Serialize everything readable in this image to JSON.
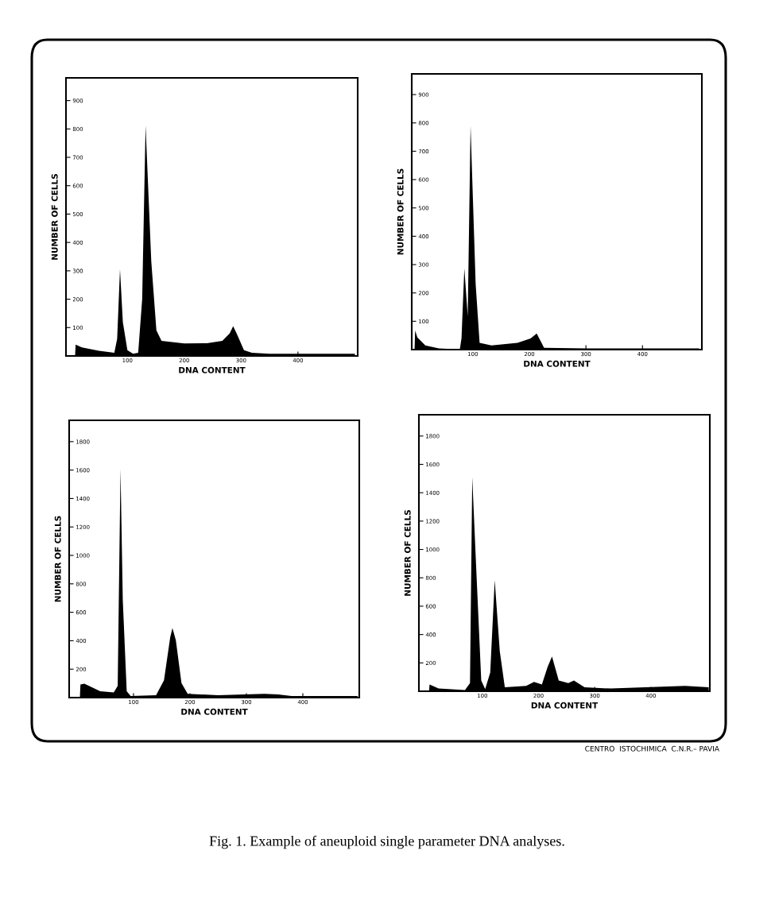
{
  "chart_data": [
    {
      "type": "area",
      "xlabel": "DNA CONTENT",
      "ylabel": "NUMBER OF CELLS",
      "xlim": [
        -8,
        505
      ],
      "ylim": [
        0,
        980
      ],
      "xticks": [
        100,
        200,
        300,
        400
      ],
      "yticks": [
        100,
        200,
        300,
        400,
        500,
        600,
        700,
        800,
        900
      ],
      "grid": false,
      "legend": false,
      "series": [
        {
          "color": "#000000",
          "x": [
            8,
            9,
            20,
            50,
            77,
            82,
            87,
            92,
            100,
            110,
            119,
            126,
            132,
            142,
            151,
            160,
            200,
            240,
            267,
            280,
            286,
            292,
            305,
            319,
            350,
            400,
            450,
            500
          ],
          "values": [
            0,
            40,
            30,
            18,
            11,
            60,
            305,
            120,
            20,
            8,
            11,
            200,
            812,
            333,
            90,
            53,
            44,
            45,
            53,
            80,
            105,
            80,
            20,
            11,
            8,
            8,
            8,
            8
          ]
        }
      ]
    },
    {
      "type": "area",
      "xlabel": "DNA CONTENT",
      "ylabel": "NUMBER OF CELLS",
      "xlim": [
        -8,
        505
      ],
      "ylim": [
        0,
        973
      ],
      "xticks": [
        100,
        200,
        300,
        400
      ],
      "yticks": [
        100,
        200,
        300,
        400,
        500,
        600,
        700,
        800,
        900
      ],
      "grid": false,
      "legend": false,
      "series": [
        {
          "color": "#000000",
          "x": [
            -3,
            -2,
            2,
            16,
            40,
            77,
            80,
            85,
            91,
            96,
            105,
            112,
            133,
            179,
            202,
            213,
            226,
            300,
            400,
            500
          ],
          "values": [
            0,
            67,
            43,
            15,
            4,
            1,
            40,
            287,
            118,
            790,
            231,
            24,
            15,
            24,
            39,
            57,
            6,
            4,
            4,
            4
          ]
        }
      ]
    },
    {
      "type": "area",
      "xlabel": "DNA CONTENT",
      "ylabel": "NUMBER OF CELLS",
      "xlim": [
        -14,
        500
      ],
      "ylim": [
        0,
        1950
      ],
      "xticks": [
        100,
        200,
        300,
        400
      ],
      "yticks": [
        200,
        400,
        600,
        800,
        1000,
        1200,
        1400,
        1600,
        1800
      ],
      "grid": false,
      "legend": false,
      "series": [
        {
          "color": "#000000",
          "x": [
            5,
            6,
            13,
            41,
            65,
            72,
            77,
            81,
            88,
            95,
            140,
            154,
            165,
            169,
            175,
            185,
            196,
            250,
            332,
            356,
            380,
            497
          ],
          "values": [
            0,
            92,
            98,
            45,
            36,
            83,
            1606,
            687,
            45,
            11,
            17,
            121,
            423,
            489,
            404,
            102,
            26,
            17,
            26,
            23,
            11,
            11
          ]
        }
      ]
    },
    {
      "type": "area",
      "xlabel": "DNA CONTENT",
      "ylabel": "NUMBER OF CELLS",
      "xlim": [
        -13,
        505
      ],
      "ylim": [
        0,
        1950
      ],
      "xticks": [
        100,
        200,
        300,
        400
      ],
      "yticks": [
        200,
        400,
        600,
        800,
        1000,
        1200,
        1400,
        1600,
        1800
      ],
      "grid": false,
      "legend": false,
      "series": [
        {
          "color": "#000000",
          "x": [
            5,
            6,
            22,
            69,
            78,
            82,
            88,
            98,
            105,
            114,
            122,
            131,
            140,
            178,
            192,
            206,
            216,
            224,
            236,
            253,
            263,
            282,
            329,
            461,
            503
          ],
          "values": [
            0,
            47,
            19,
            9,
            57,
            1509,
            962,
            75,
            15,
            132,
            783,
            283,
            28,
            38,
            66,
            47,
            170,
            245,
            75,
            57,
            75,
            28,
            19,
            38,
            28
          ]
        }
      ],
      "annotations": [
        "CENTRO  ISTOCHIMICA  C.N.R.– PAVIA",
        "Fig. 1. Example of aneuploid single parameter DNA analyses."
      ]
    }
  ]
}
